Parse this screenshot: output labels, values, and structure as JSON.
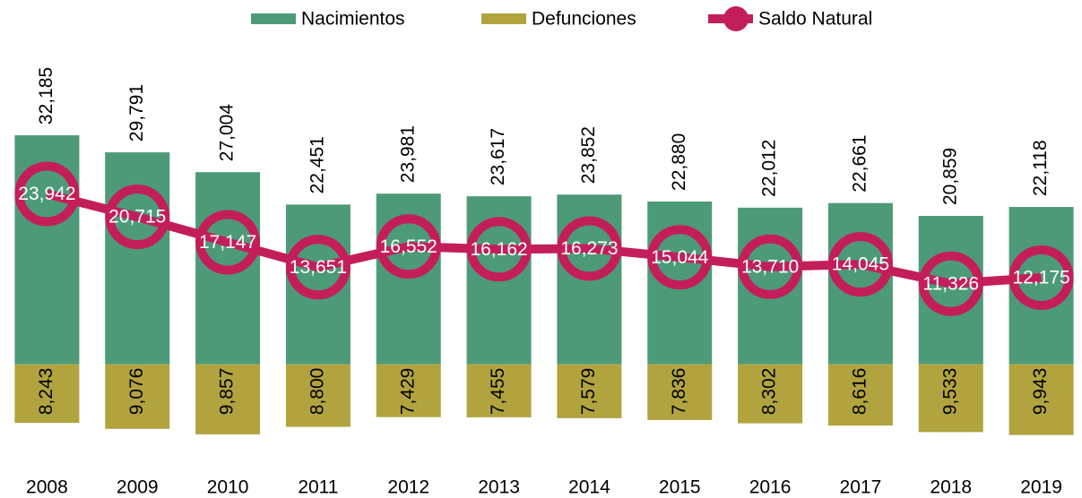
{
  "chart_data": {
    "type": "bar_line",
    "categories": [
      "2008",
      "2009",
      "2010",
      "2011",
      "2012",
      "2013",
      "2014",
      "2015",
      "2016",
      "2017",
      "2018",
      "2019"
    ],
    "series": [
      {
        "name": "Nacimientos",
        "type": "bar",
        "color": "#4d9a78",
        "values": [
          32185,
          29791,
          27004,
          22451,
          23981,
          23617,
          23852,
          22880,
          22012,
          22661,
          20859,
          22118
        ],
        "value_labels": [
          "32,185",
          "29,791",
          "27,004",
          "22,451",
          "23,981",
          "23,617",
          "23,852",
          "22,880",
          "22,012",
          "22,661",
          "20,859",
          "22,118"
        ]
      },
      {
        "name": "Defunciones",
        "type": "bar",
        "color": "#b1a43f",
        "values": [
          -8243,
          -9076,
          -9857,
          -8800,
          -7429,
          -7455,
          -7579,
          -7836,
          -8302,
          -8616,
          -9533,
          -9943
        ],
        "value_labels": [
          "8,243",
          "9,076",
          "9,857",
          "8,800",
          "7,429",
          "7,455",
          "7,579",
          "7,836",
          "8,302",
          "8,616",
          "9,533",
          "9,943"
        ]
      },
      {
        "name": "Saldo Natural",
        "type": "line",
        "color": "#c41e5a",
        "values": [
          23942,
          20715,
          17147,
          13651,
          16552,
          16162,
          16273,
          15044,
          13710,
          14045,
          11326,
          12175
        ],
        "value_labels": [
          "23,942",
          "20,715",
          "17,147",
          "13,651",
          "16,552",
          "16,162",
          "16,273",
          "15,044",
          "13,710",
          "14,045",
          "11,326",
          "12,175"
        ]
      }
    ],
    "ylim": [
      -12000,
      40000
    ],
    "legend": "top"
  }
}
